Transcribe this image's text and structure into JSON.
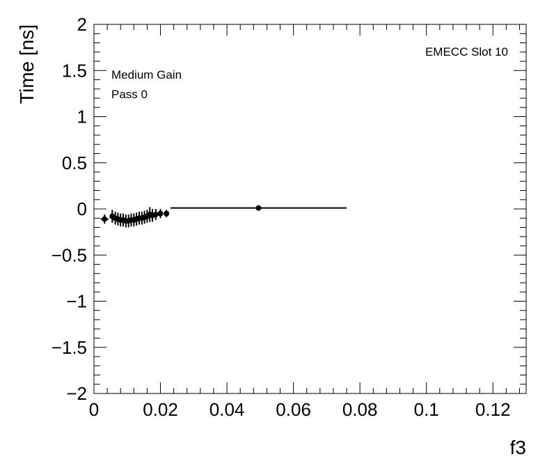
{
  "chart_data": {
    "type": "scatter",
    "xlabel": "f3",
    "ylabel": "Time [ns]",
    "xlim": [
      0,
      0.13
    ],
    "ylim": [
      -2,
      2
    ],
    "x_ticks": [
      0,
      0.02,
      0.04,
      0.06,
      0.08,
      0.1,
      0.12
    ],
    "x_tick_labels": [
      "0",
      "0.02",
      "0.04",
      "0.06",
      "0.08",
      "0.1",
      "0.12"
    ],
    "y_ticks": [
      -2,
      -1.5,
      -1,
      -0.5,
      0,
      0.5,
      1,
      1.5,
      2
    ],
    "y_tick_labels": [
      "−2",
      "−1.5",
      "−1",
      "−0.5",
      "0",
      "0.5",
      "1",
      "1.5",
      "2"
    ],
    "annotations": [
      "Medium Gain",
      "Pass 0",
      "EMECC Slot 10"
    ],
    "grid": false,
    "series": [
      {
        "points": [
          {
            "x": 0.0032,
            "y": -0.11,
            "xerr": 0.0012,
            "yerr": 0.05
          },
          {
            "x": 0.0055,
            "y": -0.08,
            "xerr": 0.0004,
            "yerr": 0.07
          },
          {
            "x": 0.0064,
            "y": -0.1,
            "xerr": 0.0004,
            "yerr": 0.07
          },
          {
            "x": 0.0072,
            "y": -0.11,
            "xerr": 0.0004,
            "yerr": 0.07
          },
          {
            "x": 0.008,
            "y": -0.12,
            "xerr": 0.0004,
            "yerr": 0.07
          },
          {
            "x": 0.0088,
            "y": -0.12,
            "xerr": 0.0004,
            "yerr": 0.07
          },
          {
            "x": 0.0096,
            "y": -0.13,
            "xerr": 0.0004,
            "yerr": 0.07
          },
          {
            "x": 0.0104,
            "y": -0.13,
            "xerr": 0.0004,
            "yerr": 0.07
          },
          {
            "x": 0.0112,
            "y": -0.12,
            "xerr": 0.0004,
            "yerr": 0.07
          },
          {
            "x": 0.012,
            "y": -0.12,
            "xerr": 0.0004,
            "yerr": 0.07
          },
          {
            "x": 0.0128,
            "y": -0.11,
            "xerr": 0.0004,
            "yerr": 0.07
          },
          {
            "x": 0.0136,
            "y": -0.1,
            "xerr": 0.0004,
            "yerr": 0.07
          },
          {
            "x": 0.0144,
            "y": -0.1,
            "xerr": 0.0004,
            "yerr": 0.07
          },
          {
            "x": 0.0152,
            "y": -0.09,
            "xerr": 0.0004,
            "yerr": 0.07
          },
          {
            "x": 0.016,
            "y": -0.08,
            "xerr": 0.0004,
            "yerr": 0.07
          },
          {
            "x": 0.0168,
            "y": -0.06,
            "xerr": 0.0004,
            "yerr": 0.08
          },
          {
            "x": 0.0176,
            "y": -0.07,
            "xerr": 0.0004,
            "yerr": 0.07
          },
          {
            "x": 0.0186,
            "y": -0.06,
            "xerr": 0.0005,
            "yerr": 0.06
          },
          {
            "x": 0.02,
            "y": -0.05,
            "xerr": 0.0006,
            "yerr": 0.05
          },
          {
            "x": 0.0218,
            "y": -0.05,
            "xerr": 0.0008,
            "yerr": 0.04
          },
          {
            "x": 0.0495,
            "y": 0.01,
            "xerr": 0.0265,
            "yerr": 0.02
          }
        ]
      }
    ]
  }
}
